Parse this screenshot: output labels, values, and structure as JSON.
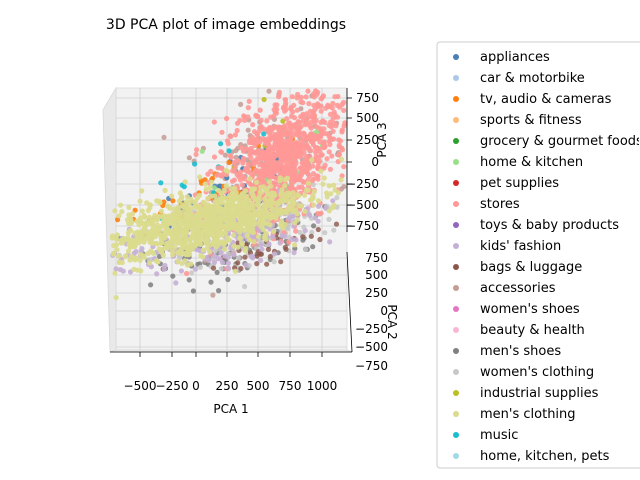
{
  "chart_data": {
    "type": "scatter",
    "projection": "3d",
    "title": "3D PCA plot of image embeddings",
    "xlabel": "PCA 1",
    "ylabel": "PCA 2",
    "zlabel": "PCA 3",
    "x_ticks": [
      "−500",
      "−250",
      "0",
      "250",
      "500",
      "750",
      "1000"
    ],
    "y_ticks": [
      "750",
      "500",
      "250",
      "0",
      "−250",
      "−500",
      "−750"
    ],
    "z_ticks": [
      "750",
      "500",
      "250",
      "0",
      "−250",
      "−500",
      "−750"
    ],
    "xlim": [
      -650,
      1150
    ],
    "ylim": [
      -750,
      850
    ],
    "zlim": [
      -850,
      850
    ],
    "grid": true,
    "legend_position": "right",
    "series": [
      {
        "name": "appliances",
        "color": "#4a7fb4"
      },
      {
        "name": "car & motorbike",
        "color": "#aec7e8"
      },
      {
        "name": "tv, audio & cameras",
        "color": "#ff7f0e"
      },
      {
        "name": "sports & fitness",
        "color": "#ffbb78"
      },
      {
        "name": "grocery & gourmet foods",
        "color": "#2ca02c"
      },
      {
        "name": "home & kitchen",
        "color": "#98df8a"
      },
      {
        "name": "pet supplies",
        "color": "#d62728"
      },
      {
        "name": "stores",
        "color": "#ff9896"
      },
      {
        "name": "toys & baby products",
        "color": "#9467bd"
      },
      {
        "name": "kids' fashion",
        "color": "#c5b0d5"
      },
      {
        "name": "bags & luggage",
        "color": "#8c564b"
      },
      {
        "name": "accessories",
        "color": "#c49c94"
      },
      {
        "name": "women's shoes",
        "color": "#e377c2"
      },
      {
        "name": "beauty & health",
        "color": "#f7b6d2"
      },
      {
        "name": "men's shoes",
        "color": "#7f7f7f"
      },
      {
        "name": "women's clothing",
        "color": "#c7c7c7"
      },
      {
        "name": "industrial supplies",
        "color": "#bcbd22"
      },
      {
        "name": "men's clothing",
        "color": "#dbdb8d"
      },
      {
        "name": "music",
        "color": "#17becf"
      },
      {
        "name": "home, kitchen, pets",
        "color": "#9edae5"
      }
    ]
  }
}
